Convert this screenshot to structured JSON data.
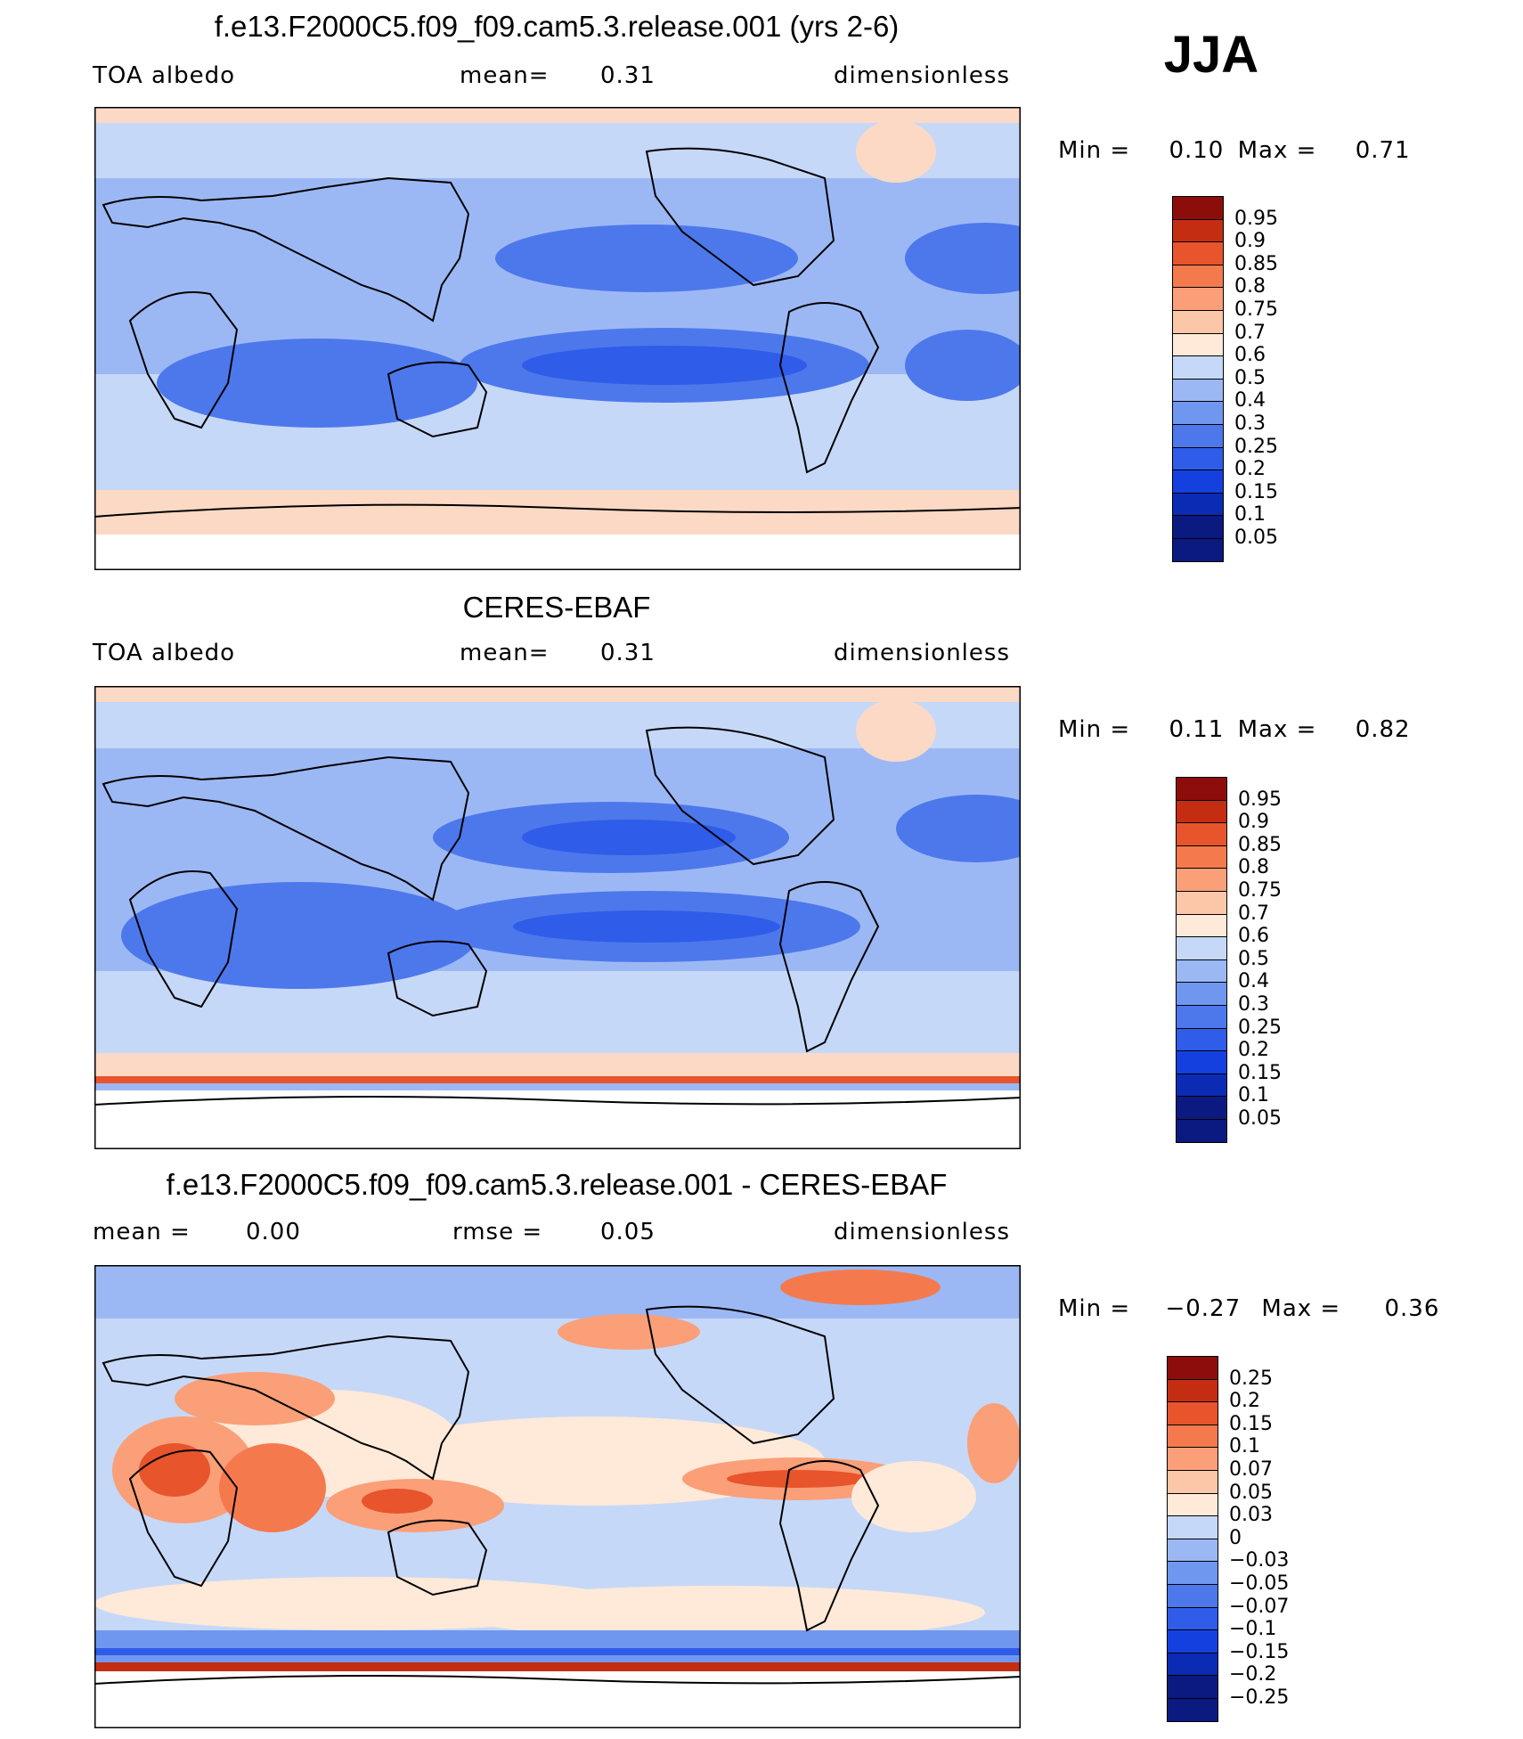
{
  "season": "JJA",
  "panels": [
    {
      "title": "f.e13.F2000C5.f09_f09.cam5.3.release.001 (yrs 2-6)",
      "left_label": "TOA albedo",
      "mid_key": "mean=",
      "mid_value": "0.31",
      "right_label": "dimensionless",
      "min_label": "Min =",
      "min_value": "0.10",
      "max_label": "Max =",
      "max_value": "0.71",
      "legend_labels": [
        "0.95",
        "0.9",
        "0.85",
        "0.8",
        "0.75",
        "0.7",
        "0.6",
        "0.5",
        "0.4",
        "0.3",
        "0.25",
        "0.2",
        "0.15",
        "0.1",
        "0.05"
      ]
    },
    {
      "title": "CERES-EBAF",
      "left_label": "TOA albedo",
      "mid_key": "mean=",
      "mid_value": "0.31",
      "right_label": "dimensionless",
      "min_label": "Min =",
      "min_value": "0.11",
      "max_label": "Max =",
      "max_value": "0.82",
      "legend_labels": [
        "0.95",
        "0.9",
        "0.85",
        "0.8",
        "0.75",
        "0.7",
        "0.6",
        "0.5",
        "0.4",
        "0.3",
        "0.25",
        "0.2",
        "0.15",
        "0.1",
        "0.05"
      ]
    },
    {
      "title": "f.e13.F2000C5.f09_f09.cam5.3.release.001 - CERES-EBAF",
      "left_label": "mean =",
      "left_value": "0.00",
      "mid_key": "rmse =",
      "mid_value": "0.05",
      "right_label": "dimensionless",
      "min_label": "Min =",
      "min_value": "−0.27",
      "max_label": "Max =",
      "max_value": "0.36",
      "legend_labels": [
        "0.25",
        "0.2",
        "0.15",
        "0.1",
        "0.07",
        "0.05",
        "0.03",
        "0",
        "−0.03",
        "−0.05",
        "−0.07",
        "−0.1",
        "−0.15",
        "−0.2",
        "−0.25"
      ]
    }
  ],
  "colors": {
    "palette": [
      "#0b1a80",
      "#0b2bb4",
      "#1540e0",
      "#2f5ce8",
      "#4d78ec",
      "#7097f0",
      "#9cb8f4",
      "#c6d8f8",
      "#ffe9d8",
      "#fcc7a8",
      "#fa9f78",
      "#f47a4e",
      "#e8542c",
      "#c52d12",
      "#8c0d0a"
    ]
  }
}
